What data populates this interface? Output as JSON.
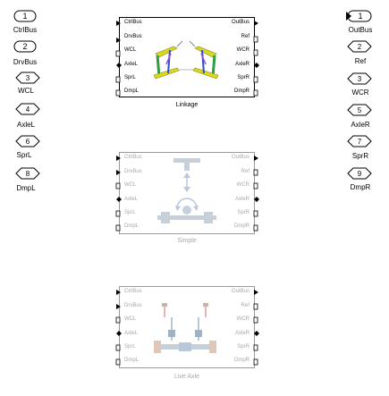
{
  "left_ports": [
    {
      "num": "1",
      "label": "CtrlBus",
      "icon": "inport-oval-icon"
    },
    {
      "num": "2",
      "label": "DrvBus",
      "icon": "inport-oval-icon"
    },
    {
      "num": "3",
      "label": "WCL",
      "icon": "conn-port-icon"
    },
    {
      "num": "4",
      "label": "AxleL",
      "icon": "conn-port-icon"
    },
    {
      "num": "6",
      "label": "SprL",
      "icon": "conn-port-icon"
    },
    {
      "num": "8",
      "label": "DmpL",
      "icon": "conn-port-icon"
    }
  ],
  "right_ports": [
    {
      "num": "1",
      "label": "OutBus",
      "icon": "outport-oval-icon"
    },
    {
      "num": "2",
      "label": "Ref",
      "icon": "conn-port-icon"
    },
    {
      "num": "3",
      "label": "WCR",
      "icon": "conn-port-icon"
    },
    {
      "num": "5",
      "label": "AxleR",
      "icon": "conn-port-icon"
    },
    {
      "num": "7",
      "label": "SprR",
      "icon": "conn-port-icon"
    },
    {
      "num": "9",
      "label": "DmpR",
      "icon": "conn-port-icon"
    }
  ],
  "blocks": [
    {
      "name": "Linkage",
      "active": true,
      "inputs": [
        "CtrlBus",
        "DrvBus",
        "WCL",
        "AxleL",
        "SprL",
        "DmpL"
      ],
      "outputs": [
        "OutBus",
        "Ref",
        "WCR",
        "AxleR",
        "SprR",
        "DmpR"
      ]
    },
    {
      "name": "Simple",
      "active": false,
      "inputs": [
        "CtrlBus",
        "DrvBus",
        "WCL",
        "AxleL",
        "SprL",
        "DmpL"
      ],
      "outputs": [
        "OutBus",
        "Ref",
        "WCR",
        "AxleR",
        "SprR",
        "DmpR"
      ]
    },
    {
      "name": "Live Axle",
      "active": false,
      "inputs": [
        "CtrlBus",
        "DrvBus",
        "WCL",
        "AxleL",
        "SprL",
        "DmpL"
      ],
      "outputs": [
        "OutBus",
        "Ref",
        "WCR",
        "AxleR",
        "SprR",
        "DmpR"
      ]
    }
  ],
  "colors": {
    "active_border": "#000000",
    "inactive_border": "#9a9a9a",
    "inactive_text": "#a8a8a8",
    "linkage_yellow": "#d8d820",
    "linkage_green": "#2e9e3e",
    "linkage_blue": "#2b4fd0",
    "linkage_purple": "#9a4fc9",
    "inactive_graphic": "#b9c8d8"
  }
}
